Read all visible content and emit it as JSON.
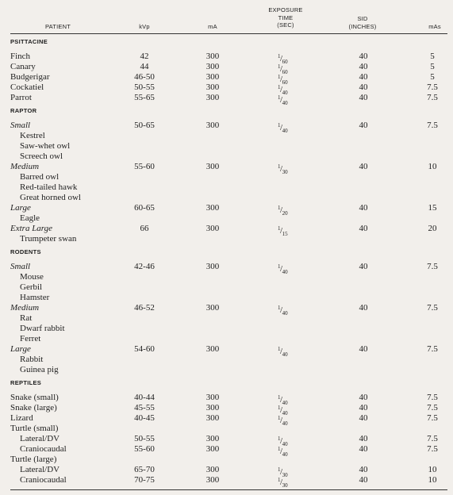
{
  "headers": {
    "patient": "PATIENT",
    "kvp": "kVp",
    "ma": "mA",
    "exposure": [
      "EXPOSURE",
      "TIME",
      "(SEC)"
    ],
    "sid": [
      "SID",
      "(INCHES)"
    ],
    "mas": "mAs"
  },
  "rows": [
    {
      "type": "category",
      "label": "PSITTACINE"
    },
    {
      "type": "data",
      "label": "Finch",
      "kvp": "42",
      "ma": "300",
      "exp_num": "1",
      "exp_den": "60",
      "sid": "40",
      "mas": "5"
    },
    {
      "type": "data",
      "label": "Canary",
      "kvp": "44",
      "ma": "300",
      "exp_num": "1",
      "exp_den": "60",
      "sid": "40",
      "mas": "5"
    },
    {
      "type": "data",
      "label": "Budgerigar",
      "kvp": "46-50",
      "ma": "300",
      "exp_num": "1",
      "exp_den": "60",
      "sid": "40",
      "mas": "5"
    },
    {
      "type": "data",
      "label": "Cockatiel",
      "kvp": "50-55",
      "ma": "300",
      "exp_num": "1",
      "exp_den": "40",
      "sid": "40",
      "mas": "7.5"
    },
    {
      "type": "data",
      "label": "Parrot",
      "kvp": "55-65",
      "ma": "300",
      "exp_num": "1",
      "exp_den": "40",
      "sid": "40",
      "mas": "7.5"
    },
    {
      "type": "category",
      "label": "RAPTOR"
    },
    {
      "type": "data",
      "label": "Small",
      "style": "sub",
      "kvp": "50-65",
      "ma": "300",
      "exp_num": "1",
      "exp_den": "40",
      "sid": "40",
      "mas": "7.5"
    },
    {
      "type": "data",
      "label": "Kestrel",
      "style": "indent"
    },
    {
      "type": "data",
      "label": "Saw-whet owl",
      "style": "indent"
    },
    {
      "type": "data",
      "label": "Screech owl",
      "style": "indent"
    },
    {
      "type": "data",
      "label": "Medium",
      "style": "sub",
      "kvp": "55-60",
      "ma": "300",
      "exp_num": "1",
      "exp_den": "30",
      "sid": "40",
      "mas": "10"
    },
    {
      "type": "data",
      "label": "Barred owl",
      "style": "indent"
    },
    {
      "type": "data",
      "label": "Red-tailed hawk",
      "style": "indent"
    },
    {
      "type": "data",
      "label": "Great horned owl",
      "style": "indent"
    },
    {
      "type": "data",
      "label": "Large",
      "style": "sub",
      "kvp": "60-65",
      "ma": "300",
      "exp_num": "1",
      "exp_den": "20",
      "sid": "40",
      "mas": "15"
    },
    {
      "type": "data",
      "label": "Eagle",
      "style": "indent"
    },
    {
      "type": "data",
      "label": "Extra Large",
      "style": "sub",
      "kvp": "66",
      "ma": "300",
      "exp_num": "1",
      "exp_den": "15",
      "sid": "40",
      "mas": "20"
    },
    {
      "type": "data",
      "label": "Trumpeter swan",
      "style": "indent"
    },
    {
      "type": "category",
      "label": "RODENTS"
    },
    {
      "type": "data",
      "label": "Small",
      "style": "sub",
      "kvp": "42-46",
      "ma": "300",
      "exp_num": "1",
      "exp_den": "40",
      "sid": "40",
      "mas": "7.5"
    },
    {
      "type": "data",
      "label": "Mouse",
      "style": "indent"
    },
    {
      "type": "data",
      "label": "Gerbil",
      "style": "indent"
    },
    {
      "type": "data",
      "label": "Hamster",
      "style": "indent"
    },
    {
      "type": "data",
      "label": "Medium",
      "style": "sub",
      "kvp": "46-52",
      "ma": "300",
      "exp_num": "1",
      "exp_den": "40",
      "sid": "40",
      "mas": "7.5"
    },
    {
      "type": "data",
      "label": "Rat",
      "style": "indent"
    },
    {
      "type": "data",
      "label": "Dwarf rabbit",
      "style": "indent"
    },
    {
      "type": "data",
      "label": "Ferret",
      "style": "indent"
    },
    {
      "type": "data",
      "label": "Large",
      "style": "sub",
      "kvp": "54-60",
      "ma": "300",
      "exp_num": "1",
      "exp_den": "40",
      "sid": "40",
      "mas": "7.5"
    },
    {
      "type": "data",
      "label": "Rabbit",
      "style": "indent"
    },
    {
      "type": "data",
      "label": "Guinea pig",
      "style": "indent"
    },
    {
      "type": "category",
      "label": "REPTILES"
    },
    {
      "type": "data",
      "label": "Snake (small)",
      "kvp": "40-44",
      "ma": "300",
      "exp_num": "1",
      "exp_den": "40",
      "sid": "40",
      "mas": "7.5"
    },
    {
      "type": "data",
      "label": "Snake (large)",
      "kvp": "45-55",
      "ma": "300",
      "exp_num": "1",
      "exp_den": "40",
      "sid": "40",
      "mas": "7.5"
    },
    {
      "type": "data",
      "label": "Lizard",
      "kvp": "40-45",
      "ma": "300",
      "exp_num": "1",
      "exp_den": "40",
      "sid": "40",
      "mas": "7.5"
    },
    {
      "type": "data",
      "label": "Turtle (small)"
    },
    {
      "type": "data",
      "label": "Lateral/DV",
      "style": "indent",
      "kvp": "50-55",
      "ma": "300",
      "exp_num": "1",
      "exp_den": "40",
      "sid": "40",
      "mas": "7.5"
    },
    {
      "type": "data",
      "label": "Craniocaudal",
      "style": "indent",
      "kvp": "55-60",
      "ma": "300",
      "exp_num": "1",
      "exp_den": "40",
      "sid": "40",
      "mas": "7.5"
    },
    {
      "type": "data",
      "label": "Turtle (large)"
    },
    {
      "type": "data",
      "label": "Lateral/DV",
      "style": "indent",
      "kvp": "65-70",
      "ma": "300",
      "exp_num": "1",
      "exp_den": "30",
      "sid": "40",
      "mas": "10"
    },
    {
      "type": "data",
      "label": "Craniocaudal",
      "style": "indent",
      "kvp": "70-75",
      "ma": "300",
      "exp_num": "1",
      "exp_den": "30",
      "sid": "40",
      "mas": "10"
    }
  ]
}
